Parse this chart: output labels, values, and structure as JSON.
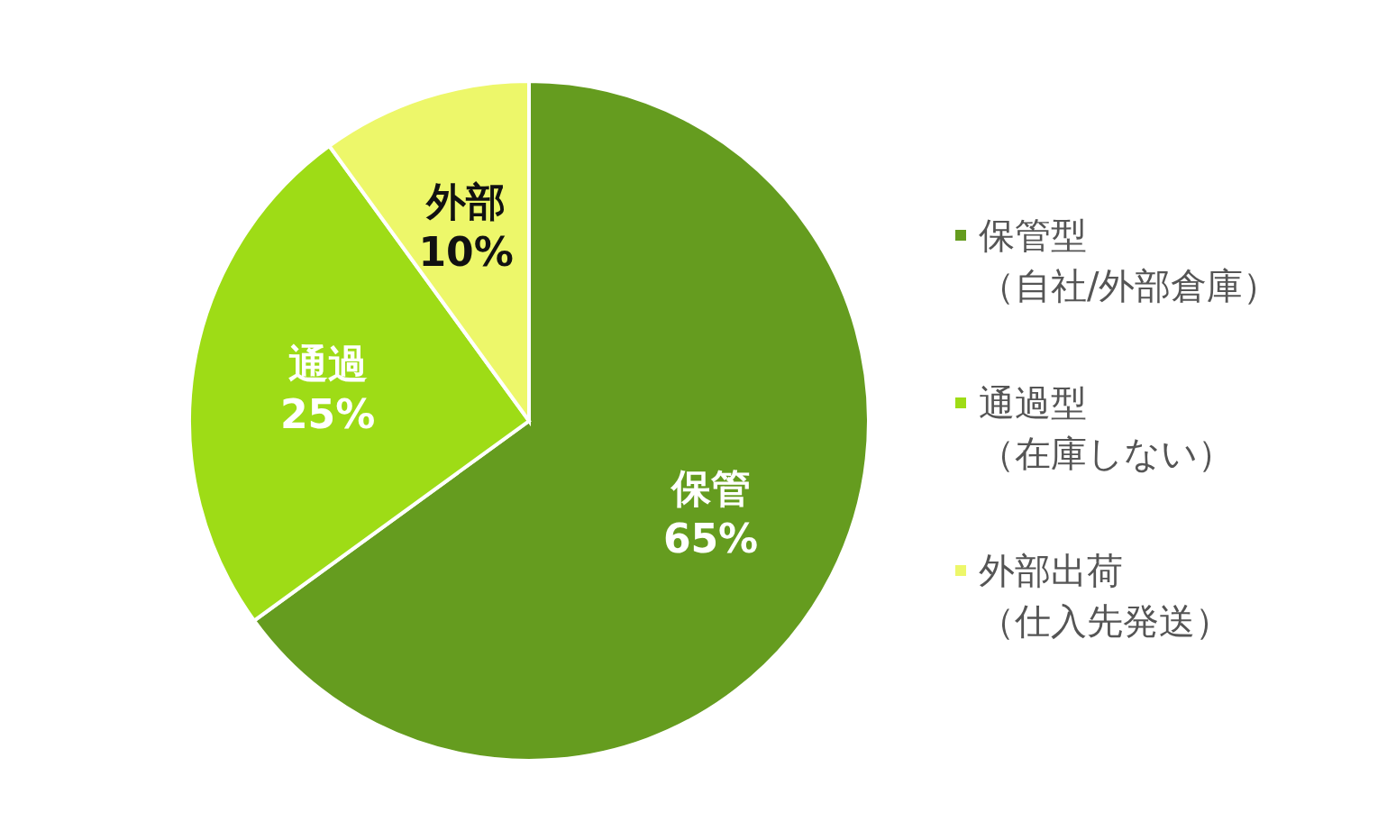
{
  "chart_data": {
    "type": "pie",
    "categories": [
      "保管型（自社/外部倉庫）",
      "通過型（在庫しない）",
      "外部出荷（仕入先発送）"
    ],
    "values": [
      65,
      25,
      10
    ],
    "colors": [
      "#659c1f",
      "#9edc16",
      "#edf76a"
    ],
    "value_labels": [
      "保管\n65%",
      "通過\n25%",
      "外部\n10%"
    ],
    "legend": "right"
  }
}
